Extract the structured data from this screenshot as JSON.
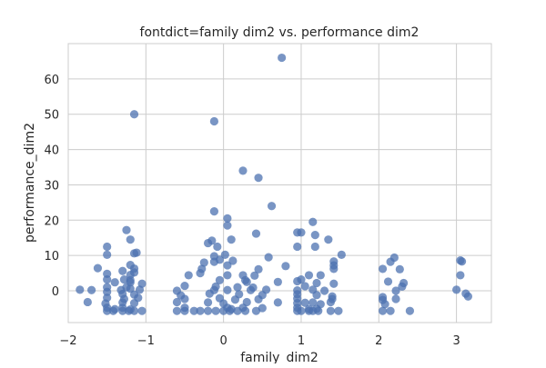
{
  "chart_data": {
    "type": "scatter",
    "title": "fontdict=family dim2 vs. performance dim2",
    "xlabel": "family_dim2",
    "ylabel": "performance_dim2",
    "xlim": [
      -2.0,
      3.45
    ],
    "ylim": [
      -9.0,
      70.0
    ],
    "xticks": [
      -2,
      -1,
      0,
      1,
      2,
      3
    ],
    "xtick_labels": [
      "−2",
      "−1",
      "0",
      "1",
      "2",
      "3"
    ],
    "yticks": [
      0,
      10,
      20,
      30,
      40,
      50,
      60
    ],
    "ytick_labels": [
      "0",
      "10",
      "20",
      "30",
      "40",
      "50",
      "60"
    ],
    "grid": true,
    "marker_color": "#4c72b0",
    "marker_alpha": 0.75,
    "points": [
      [
        0.75,
        66
      ],
      [
        -1.15,
        50
      ],
      [
        -0.12,
        48
      ],
      [
        0.25,
        34
      ],
      [
        0.45,
        32
      ],
      [
        0.62,
        24
      ],
      [
        -0.12,
        22.5
      ],
      [
        0.05,
        20.5
      ],
      [
        0.05,
        18.5
      ],
      [
        1.15,
        19.5
      ],
      [
        -1.25,
        17.2
      ],
      [
        0.95,
        16.5
      ],
      [
        1.0,
        16.5
      ],
      [
        0.42,
        16.2
      ],
      [
        1.18,
        15.8
      ],
      [
        1.35,
        14.5
      ],
      [
        -1.2,
        14.5
      ],
      [
        -0.15,
        14.2
      ],
      [
        0.1,
        14.5
      ],
      [
        -0.2,
        13.5
      ],
      [
        -0.08,
        12.5
      ],
      [
        -1.5,
        12.5
      ],
      [
        0.95,
        12.5
      ],
      [
        1.18,
        12.5
      ],
      [
        -1.15,
        10.6
      ],
      [
        -1.12,
        10.8
      ],
      [
        -1.5,
        10.2
      ],
      [
        -0.12,
        9.8
      ],
      [
        0.02,
        10.2
      ],
      [
        0.58,
        9.5
      ],
      [
        1.52,
        10.2
      ],
      [
        2.2,
        9.4
      ],
      [
        2.15,
        8.2
      ],
      [
        -0.12,
        8.2
      ],
      [
        -0.25,
        8.0
      ],
      [
        -0.05,
        8.8
      ],
      [
        0.12,
        8.5
      ],
      [
        0.05,
        7.2
      ],
      [
        3.05,
        8.6
      ],
      [
        3.07,
        8.3
      ],
      [
        1.42,
        8.3
      ],
      [
        1.42,
        7.2
      ],
      [
        0.8,
        7.0
      ],
      [
        -1.2,
        7.3
      ],
      [
        -1.15,
        6.3
      ],
      [
        -1.62,
        6.4
      ],
      [
        -1.3,
        5.6
      ],
      [
        -1.15,
        5.2
      ],
      [
        -0.28,
        6.2
      ],
      [
        0.45,
        6.1
      ],
      [
        -0.3,
        5.0
      ],
      [
        1.42,
        6.2
      ],
      [
        2.05,
        6.2
      ],
      [
        2.27,
        6.1
      ],
      [
        -1.5,
        4.8
      ],
      [
        -1.2,
        4.5
      ],
      [
        -1.28,
        3.2
      ],
      [
        -0.45,
        4.4
      ],
      [
        0.05,
        4.4
      ],
      [
        0.25,
        4.4
      ],
      [
        0.4,
        4.3
      ],
      [
        1.1,
        4.4
      ],
      [
        1.25,
        4.4
      ],
      [
        1.0,
        3.2
      ],
      [
        3.05,
        4.4
      ],
      [
        -1.5,
        3.2
      ],
      [
        -1.2,
        3.0
      ],
      [
        -0.05,
        3.0
      ],
      [
        0.28,
        3.0
      ],
      [
        0.3,
        2.5
      ],
      [
        0.7,
        2.5
      ],
      [
        0.95,
        2.7
      ],
      [
        1.2,
        2.2
      ],
      [
        1.42,
        2.0
      ],
      [
        2.12,
        2.6
      ],
      [
        2.32,
        2.2
      ],
      [
        -1.4,
        2.4
      ],
      [
        -1.2,
        2.4
      ],
      [
        -1.05,
        2.0
      ],
      [
        -1.5,
        1.0
      ],
      [
        -1.25,
        1.0
      ],
      [
        -0.5,
        1.4
      ],
      [
        -0.1,
        1.2
      ],
      [
        0.18,
        1.0
      ],
      [
        0.38,
        0.9
      ],
      [
        1.05,
        1.3
      ],
      [
        2.3,
        1.2
      ],
      [
        -1.85,
        0.3
      ],
      [
        -1.7,
        0.2
      ],
      [
        -1.5,
        -0.3
      ],
      [
        -1.32,
        0.2
      ],
      [
        -1.2,
        0.6
      ],
      [
        -1.08,
        0.3
      ],
      [
        -0.6,
        0.0
      ],
      [
        -0.12,
        0.2
      ],
      [
        0.05,
        0.2
      ],
      [
        0.35,
        0.2
      ],
      [
        0.55,
        0.3
      ],
      [
        0.95,
        0.1
      ],
      [
        1.15,
        0.3
      ],
      [
        1.3,
        0.0
      ],
      [
        2.22,
        0.0
      ],
      [
        3.0,
        0.3
      ],
      [
        -1.3,
        -0.9
      ],
      [
        -1.15,
        -1.1
      ],
      [
        -0.55,
        -1.3
      ],
      [
        -0.18,
        -0.8
      ],
      [
        0.2,
        -1.0
      ],
      [
        0.5,
        -1.2
      ],
      [
        0.95,
        -1.0
      ],
      [
        1.2,
        -1.2
      ],
      [
        1.4,
        -1.6
      ],
      [
        2.05,
        -1.8
      ],
      [
        3.15,
        -1.6
      ],
      [
        3.12,
        -0.8
      ],
      [
        -1.75,
        -3.2
      ],
      [
        -1.5,
        -2.0
      ],
      [
        -1.28,
        -2.3
      ],
      [
        -1.1,
        -2.0
      ],
      [
        -0.5,
        -2.3
      ],
      [
        -0.05,
        -2.1
      ],
      [
        0.15,
        -2.5
      ],
      [
        0.45,
        -2.4
      ],
      [
        0.95,
        -2.2
      ],
      [
        1.4,
        -2.3
      ],
      [
        2.05,
        -2.6
      ],
      [
        2.22,
        -2.3
      ],
      [
        -1.52,
        -3.6
      ],
      [
        -1.3,
        -3.3
      ],
      [
        -1.15,
        -3.5
      ],
      [
        -0.6,
        -3.2
      ],
      [
        -0.2,
        -3.3
      ],
      [
        0.0,
        -3.6
      ],
      [
        0.3,
        -3.2
      ],
      [
        0.7,
        -3.3
      ],
      [
        0.95,
        -3.5
      ],
      [
        1.05,
        -3.4
      ],
      [
        1.15,
        -3.3
      ],
      [
        1.25,
        -3.8
      ],
      [
        1.38,
        -3.2
      ],
      [
        2.08,
        -3.8
      ],
      [
        -1.5,
        -4.8
      ],
      [
        -1.4,
        -5.2
      ],
      [
        -1.3,
        -4.8
      ],
      [
        -1.2,
        -5.3
      ],
      [
        -0.5,
        -4.8
      ],
      [
        0.05,
        -4.8
      ],
      [
        0.1,
        -5.2
      ],
      [
        0.25,
        -4.8
      ],
      [
        0.5,
        -4.9
      ],
      [
        0.95,
        -4.8
      ],
      [
        1.1,
        -5.2
      ],
      [
        1.2,
        -5.1
      ],
      [
        -1.5,
        -5.7
      ],
      [
        -1.42,
        -5.7
      ],
      [
        -1.3,
        -5.7
      ],
      [
        -1.22,
        -5.7
      ],
      [
        -1.15,
        -5.7
      ],
      [
        -1.05,
        -5.7
      ],
      [
        -0.6,
        -5.7
      ],
      [
        -0.5,
        -5.7
      ],
      [
        -0.38,
        -5.7
      ],
      [
        -0.3,
        -5.7
      ],
      [
        -0.2,
        -5.7
      ],
      [
        -0.1,
        -5.7
      ],
      [
        0.0,
        -5.7
      ],
      [
        0.08,
        -5.7
      ],
      [
        0.18,
        -5.7
      ],
      [
        0.28,
        -5.7
      ],
      [
        0.42,
        -5.7
      ],
      [
        0.95,
        -5.7
      ],
      [
        1.0,
        -5.7
      ],
      [
        1.1,
        -5.7
      ],
      [
        1.15,
        -5.7
      ],
      [
        1.22,
        -5.7
      ],
      [
        1.38,
        -5.7
      ],
      [
        1.48,
        -5.7
      ],
      [
        2.05,
        -5.7
      ],
      [
        2.15,
        -5.7
      ],
      [
        2.4,
        -5.7
      ]
    ]
  }
}
